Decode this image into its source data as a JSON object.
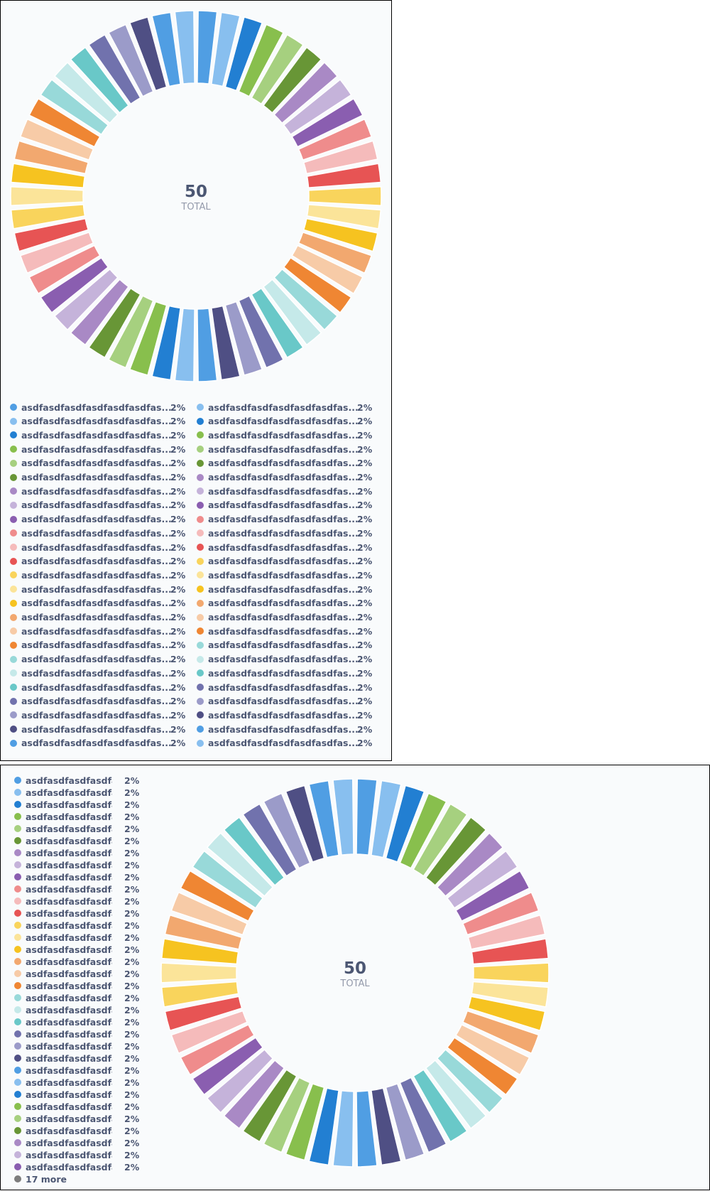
{
  "colors": [
    "#509EE3",
    "#88BFEF",
    "#227FD2",
    "#88BF4D",
    "#A6D07F",
    "#689636",
    "#A989C5",
    "#C5B3DA",
    "#8A5EB0",
    "#EF8C8C",
    "#F5BBBB",
    "#E75454",
    "#F9D45C",
    "#FBE499",
    "#F6C320",
    "#F2A86F",
    "#F7CBA7",
    "#EF8633",
    "#98D9D9",
    "#C5E9E9",
    "#69C8C8",
    "#7172AD",
    "#9B9BC9",
    "#4F4F84"
  ],
  "panel1": {
    "center_value": "50",
    "center_label": "TOTAL",
    "legend_label": "asdfasdfasdfasdfasdfasdfas...",
    "legend_pct": "2%"
  },
  "panel2": {
    "center_value": "50",
    "center_label": "TOTAL",
    "legend_label": "asdfasdfasdfasdfa...",
    "legend_pct": "2%",
    "more_label": "17 more",
    "more_color": "#7D7D7D"
  },
  "chart_data": [
    {
      "type": "pie",
      "style": "donut",
      "total": 50,
      "total_label": "TOTAL",
      "slice_count": 50,
      "slice_value": 1,
      "slice_percent": "2%",
      "slice_label": "asdfasdfasdfasdfasdfasdfas...",
      "legend_placement": "bottom"
    },
    {
      "type": "pie",
      "style": "donut",
      "total": 50,
      "total_label": "TOTAL",
      "slice_count": 50,
      "slice_value": 1,
      "slice_percent": "2%",
      "visible_legend_entries": 33,
      "slice_label": "asdfasdfasdfasdfa...",
      "more_label": "17 more",
      "legend_placement": "left"
    }
  ]
}
